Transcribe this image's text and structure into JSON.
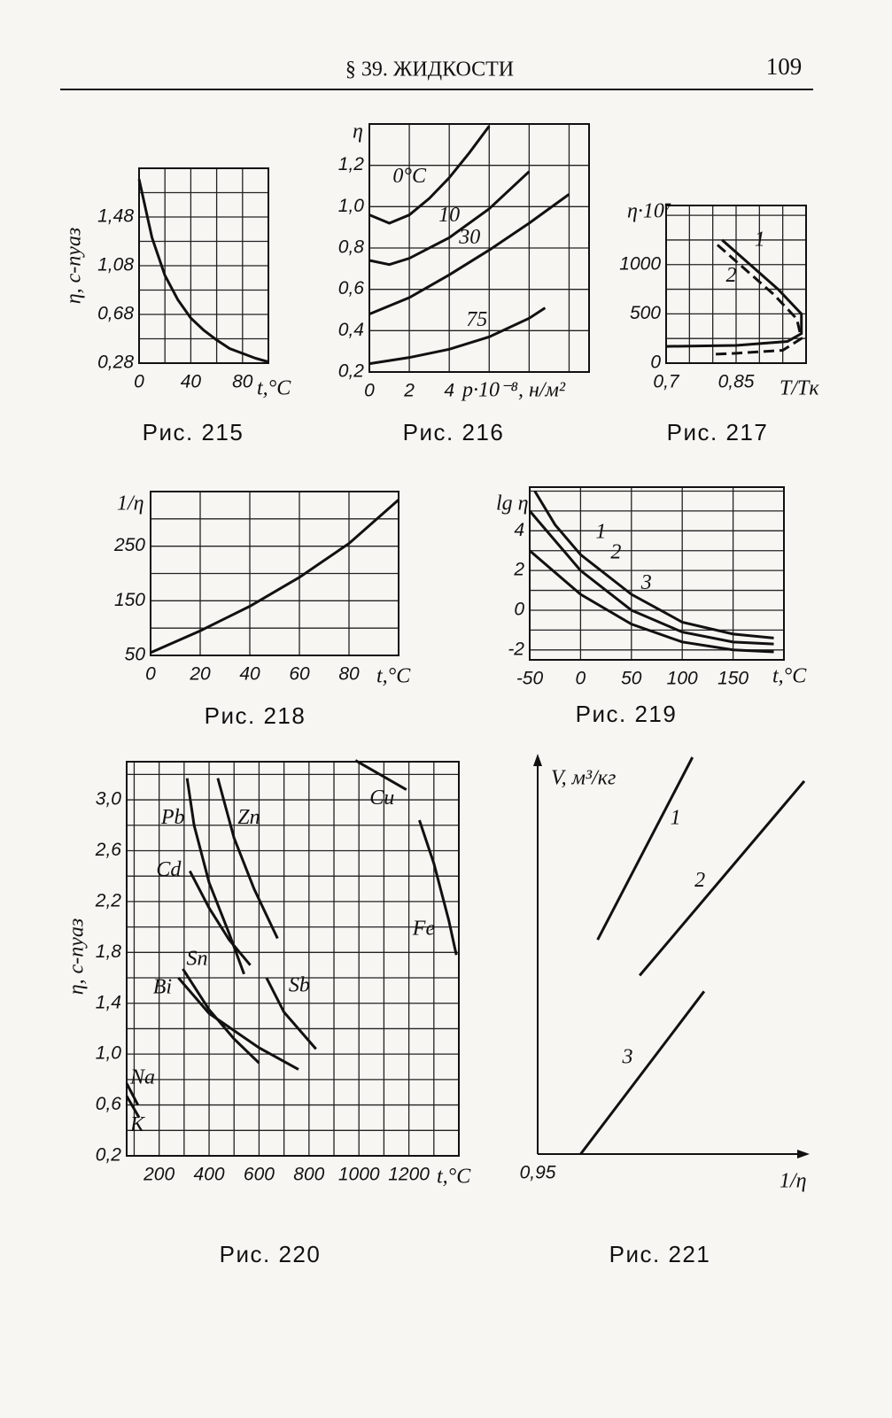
{
  "header": {
    "section": "§ 39. ЖИДКОСТИ",
    "page": "109"
  },
  "chart_data": [
    {
      "type": "line",
      "caption": "Рис. 215",
      "ylabel": "η, с-пуаз",
      "xlabel": "t,°C",
      "color": "#111",
      "grid": true,
      "xlim": [
        0,
        100
      ],
      "ylim": [
        0.28,
        1.88
      ],
      "xticks": [
        0,
        40,
        80
      ],
      "yticks": [
        {
          "value": 0.28,
          "label": "0,28"
        },
        {
          "value": 0.68,
          "label": "0,68"
        },
        {
          "value": 1.08,
          "label": "1,08"
        },
        {
          "value": 1.48,
          "label": "1,48"
        }
      ],
      "xgrid": [
        0,
        20,
        40,
        60,
        80,
        100
      ],
      "ygrid": [
        0.28,
        0.48,
        0.68,
        0.88,
        1.08,
        1.28,
        1.48,
        1.68,
        1.88
      ],
      "series": [
        {
          "x": [
            0,
            10,
            20,
            30,
            40,
            50,
            60,
            70,
            80,
            90,
            100
          ],
          "values": [
            1.79,
            1.31,
            1.0,
            0.8,
            0.65,
            0.55,
            0.47,
            0.4,
            0.36,
            0.32,
            0.29
          ]
        }
      ]
    },
    {
      "type": "line",
      "caption": "Рис. 216",
      "ylabel": "η",
      "xlabel": "p·10⁻⁸, н/м²",
      "color": "#111",
      "grid": true,
      "xlim": [
        0,
        11
      ],
      "ylim": [
        0.2,
        1.4
      ],
      "xticks": [
        0,
        2,
        4
      ],
      "yticks": [
        {
          "value": 0.2,
          "label": "0,2"
        },
        {
          "value": 0.4,
          "label": "0,4"
        },
        {
          "value": 0.6,
          "label": "0,6"
        },
        {
          "value": 0.8,
          "label": "0,8"
        },
        {
          "value": 1.0,
          "label": "1,0"
        },
        {
          "value": 1.2,
          "label": "1,2"
        }
      ],
      "xgrid": [
        0,
        2,
        4,
        6,
        8,
        10
      ],
      "ygrid": [
        0.2,
        0.4,
        0.6,
        0.8,
        1.0,
        1.2,
        1.4
      ],
      "series": [
        {
          "name": "0°C",
          "x": [
            0,
            1,
            2,
            3,
            4,
            5,
            6
          ],
          "values": [
            0.96,
            0.92,
            0.96,
            1.04,
            1.14,
            1.26,
            1.39
          ]
        },
        {
          "name": "10",
          "x": [
            0,
            1,
            2,
            4,
            6,
            8
          ],
          "values": [
            0.74,
            0.72,
            0.75,
            0.85,
            0.99,
            1.17
          ]
        },
        {
          "name": "30",
          "x": [
            0,
            2,
            4,
            6,
            8,
            10
          ],
          "values": [
            0.48,
            0.56,
            0.67,
            0.79,
            0.92,
            1.06
          ]
        },
        {
          "name": "75",
          "x": [
            0,
            2,
            4,
            6,
            8,
            8.8
          ],
          "values": [
            0.24,
            0.27,
            0.31,
            0.37,
            0.46,
            0.51
          ]
        }
      ]
    },
    {
      "type": "line",
      "caption": "Рис. 217",
      "ylabel": "η·10⁷",
      "xlabel": "T/Tк",
      "color": "#111",
      "grid": true,
      "xlim": [
        0.7,
        1.0
      ],
      "ylim": [
        0,
        1600
      ],
      "xticks": [
        {
          "value": 0.7,
          "label": "0,7"
        },
        {
          "value": 0.85,
          "label": "0,85"
        }
      ],
      "yticks": [
        0,
        500,
        1000
      ],
      "xgrid": [
        0.7,
        0.75,
        0.8,
        0.85,
        0.9,
        0.95,
        1.0
      ],
      "ygrid": [
        0,
        250,
        500,
        750,
        1000,
        1250,
        1500
      ],
      "series": [
        {
          "name": "1",
          "x": [
            0.82,
            0.88,
            0.94,
            0.99,
            0.99,
            0.96,
            0.85,
            0.7
          ],
          "values": [
            1250,
            1000,
            750,
            500,
            300,
            220,
            180,
            170
          ]
        },
        {
          "name": "2",
          "dashed": true,
          "x": [
            0.81,
            0.87,
            0.93,
            0.98,
            0.99,
            0.95,
            0.85,
            0.8
          ],
          "values": [
            1200,
            950,
            700,
            450,
            250,
            130,
            100,
            90
          ]
        }
      ]
    },
    {
      "type": "line",
      "caption": "Рис. 218",
      "ylabel": "1/η",
      "xlabel": "t,°C",
      "color": "#111",
      "grid": true,
      "xlim": [
        0,
        100
      ],
      "ylim": [
        50,
        350
      ],
      "xticks": [
        0,
        20,
        40,
        60,
        80
      ],
      "yticks": [
        50,
        150,
        250
      ],
      "xgrid": [
        0,
        20,
        40,
        60,
        80,
        100
      ],
      "ygrid": [
        50,
        100,
        150,
        200,
        250,
        300,
        350
      ],
      "series": [
        {
          "x": [
            0,
            20,
            40,
            60,
            80,
            100
          ],
          "values": [
            55,
            95,
            140,
            193,
            255,
            335
          ]
        }
      ]
    },
    {
      "type": "line",
      "caption": "Рис. 219",
      "ylabel": "lg η",
      "xlabel": "t,°C",
      "color": "#111",
      "grid": true,
      "xlim": [
        -50,
        200
      ],
      "ylim": [
        -2.5,
        6.2
      ],
      "xticks": [
        -50,
        0,
        50,
        100,
        150
      ],
      "yticks": [
        -2,
        0,
        2,
        4
      ],
      "xgrid": [
        -50,
        0,
        50,
        100,
        150,
        200
      ],
      "ygrid": [
        -2,
        -1,
        0,
        1,
        2,
        3,
        4,
        5,
        6
      ],
      "series": [
        {
          "name": "1",
          "x": [
            -45,
            -25,
            0,
            50,
            100,
            150,
            190
          ],
          "values": [
            6,
            4.3,
            2.8,
            0.8,
            -0.6,
            -1.2,
            -1.4
          ]
        },
        {
          "name": "2",
          "x": [
            -50,
            0,
            50,
            100,
            150,
            190
          ],
          "values": [
            5,
            2,
            0,
            -1.1,
            -1.6,
            -1.7
          ]
        },
        {
          "name": "3",
          "x": [
            -50,
            0,
            50,
            100,
            150,
            190
          ],
          "values": [
            3,
            0.8,
            -0.7,
            -1.6,
            -2,
            -2.1
          ]
        }
      ]
    },
    {
      "type": "line",
      "caption": "Рис. 220",
      "ylabel": "η, с-пуаз",
      "xlabel": "t,°C",
      "color": "#111",
      "grid": true,
      "xlim": [
        70,
        1400
      ],
      "ylim": [
        0.2,
        3.3
      ],
      "xticks": [
        200,
        400,
        600,
        800,
        1000,
        1200
      ],
      "yticks": [
        {
          "value": 0.2,
          "label": "0,2"
        },
        {
          "value": 0.6,
          "label": "0,6"
        },
        {
          "value": 1.0,
          "label": "1,0"
        },
        {
          "value": 1.4,
          "label": "1,4"
        },
        {
          "value": 1.8,
          "label": "1,8"
        },
        {
          "value": 2.2,
          "label": "2,2"
        },
        {
          "value": 2.6,
          "label": "2,6"
        },
        {
          "value": 3.0,
          "label": "3,0"
        }
      ],
      "xgrid": [
        100,
        200,
        300,
        400,
        500,
        600,
        700,
        800,
        900,
        1000,
        1100,
        1200,
        1300,
        1400
      ],
      "ygrid": [
        0.2,
        0.4,
        0.6,
        0.8,
        1.0,
        1.2,
        1.4,
        1.6,
        1.8,
        2.0,
        2.2,
        2.4,
        2.6,
        2.8,
        3.0,
        3.2
      ],
      "series": [
        {
          "name": "Pb",
          "x": [
            312,
            340,
            400,
            480,
            540
          ],
          "values": [
            3.17,
            2.8,
            2.35,
            1.95,
            1.63
          ]
        },
        {
          "name": "Zn",
          "x": [
            435,
            500,
            580,
            674
          ],
          "values": [
            3.17,
            2.7,
            2.3,
            1.91
          ]
        },
        {
          "name": "Cd",
          "x": [
            323,
            400,
            480,
            565
          ],
          "values": [
            2.44,
            2.15,
            1.9,
            1.7
          ]
        },
        {
          "name": "Sn",
          "x": [
            295,
            400,
            500,
            600
          ],
          "values": [
            1.67,
            1.35,
            1.12,
            0.93
          ]
        },
        {
          "name": "Bi",
          "x": [
            277,
            400,
            600,
            758
          ],
          "values": [
            1.6,
            1.32,
            1.05,
            0.88
          ]
        },
        {
          "name": "Sb",
          "x": [
            630,
            700,
            828
          ],
          "values": [
            1.6,
            1.33,
            1.04
          ]
        },
        {
          "name": "Cu",
          "x": [
            986,
            1190
          ],
          "values": [
            3.31,
            3.08
          ]
        },
        {
          "name": "Fe",
          "x": [
            1242,
            1300,
            1360,
            1390
          ],
          "values": [
            2.84,
            2.5,
            2.05,
            1.78
          ]
        },
        {
          "name": "Na",
          "x": [
            70,
            115
          ],
          "values": [
            0.77,
            0.6
          ]
        },
        {
          "name": "K",
          "x": [
            70,
            120
          ],
          "values": [
            0.67,
            0.5
          ]
        }
      ]
    },
    {
      "type": "line",
      "caption": "Рис. 221",
      "ylabel": "V, м³/кг",
      "xlabel": "1/η",
      "color": "#111",
      "grid": false,
      "xlim": [
        0.95,
        1.25
      ],
      "ylim": [
        0,
        1
      ],
      "xticks": [
        {
          "value": 0.95,
          "label": "0,95"
        }
      ],
      "yticks": [],
      "series": [
        {
          "name": "1",
          "x": [
            1.017,
            1.123
          ],
          "values": [
            0.54,
            1.0
          ]
        },
        {
          "name": "2",
          "x": [
            1.064,
            1.248
          ],
          "values": [
            0.45,
            0.94
          ]
        },
        {
          "name": "3",
          "x": [
            0.998,
            1.136
          ],
          "values": [
            0.0,
            0.41
          ]
        }
      ]
    }
  ]
}
